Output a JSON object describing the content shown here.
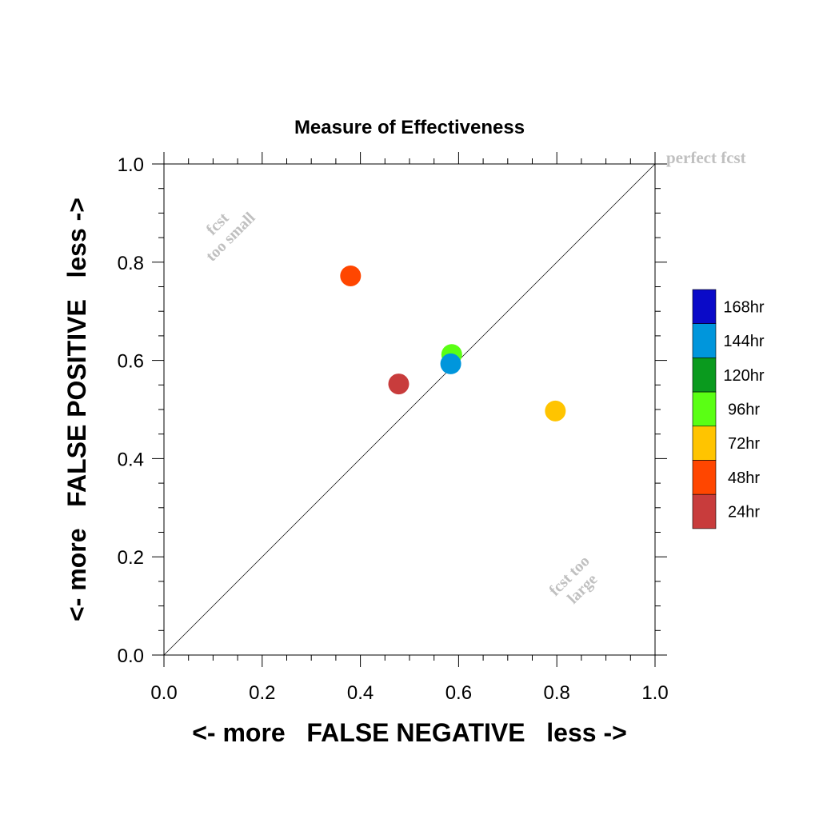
{
  "chart_data": {
    "type": "scatter",
    "title": "Measure of Effectiveness",
    "xlabel": "<- more   FALSE NEGATIVE   less ->",
    "ylabel": "<- more   FALSE POSITIVE   less ->",
    "xlim": [
      0.0,
      1.0
    ],
    "ylim": [
      0.0,
      1.0
    ],
    "x_ticks": [
      "0.0",
      "0.2",
      "0.4",
      "0.6",
      "0.8",
      "1.0"
    ],
    "y_ticks": [
      "0.0",
      "0.2",
      "0.4",
      "0.6",
      "0.8",
      "1.0"
    ],
    "grid": false,
    "reference_line": {
      "from": [
        0.0,
        0.0
      ],
      "to": [
        1.0,
        1.0
      ]
    },
    "annotations": {
      "perfect": "perfect fcst",
      "too_small_line1": "fcst",
      "too_small_line2": "too small",
      "too_large_line1": "fcst too",
      "too_large_line2": "large"
    },
    "legend_position": "right",
    "legend": [
      {
        "label": "168hr",
        "color": "#0a0ac8"
      },
      {
        "label": "144hr",
        "color": "#0096dc"
      },
      {
        "label": "120hr",
        "color": "#0a9a1e"
      },
      {
        "label": "96hr",
        "color": "#5aff14"
      },
      {
        "label": "72hr",
        "color": "#ffc400"
      },
      {
        "label": "48hr",
        "color": "#ff4600"
      },
      {
        "label": "24hr",
        "color": "#c83c3c"
      }
    ],
    "points": [
      {
        "series": "48hr",
        "x": 0.38,
        "y": 0.772,
        "color": "#ff4600"
      },
      {
        "series": "96hr",
        "x": 0.586,
        "y": 0.612,
        "color": "#5aff14"
      },
      {
        "series": "144hr",
        "x": 0.584,
        "y": 0.593,
        "color": "#0096dc"
      },
      {
        "series": "24hr",
        "x": 0.478,
        "y": 0.552,
        "color": "#c83c3c"
      },
      {
        "series": "72hr",
        "x": 0.797,
        "y": 0.497,
        "color": "#ffc400"
      }
    ]
  }
}
